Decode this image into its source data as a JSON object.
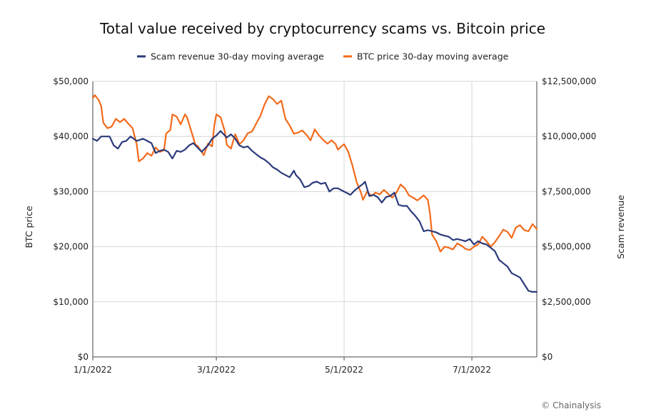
{
  "chart_data": {
    "type": "line",
    "title": "Total value received by cryptocurrency scams vs. Bitcoin price",
    "ylabel_left": "BTC price",
    "ylabel_right": "Scam revenue",
    "credit": "© Chainalysis",
    "legend_position": "top",
    "grid": true,
    "x_ticks": [
      {
        "label": "1/1/2022",
        "day": 0
      },
      {
        "label": "3/1/2022",
        "day": 59
      },
      {
        "label": "5/1/2022",
        "day": 120
      },
      {
        "label": "7/1/2022",
        "day": 181
      }
    ],
    "xlim_days": [
      0,
      212
    ],
    "y_left": {
      "min": 0,
      "max": 50000,
      "ticks": [
        "$0",
        "$10,000",
        "$20,000",
        "$30,000",
        "$40,000",
        "$50,000"
      ]
    },
    "y_right": {
      "min": 0,
      "max": 12500000,
      "ticks": [
        "$0",
        "$2,500,000",
        "$5,000,000",
        "$7,500,000",
        "$10,000,000",
        "$12,500,000"
      ]
    },
    "series": [
      {
        "name": "Scam revenue 30-day moving average",
        "color": "#2b3a7a",
        "axis": "right",
        "points": [
          [
            0,
            9900000
          ],
          [
            2,
            9800000
          ],
          [
            4,
            10000000
          ],
          [
            8,
            10000000
          ],
          [
            10,
            9600000
          ],
          [
            12,
            9450000
          ],
          [
            14,
            9750000
          ],
          [
            16,
            9800000
          ],
          [
            18,
            10000000
          ],
          [
            21,
            9800000
          ],
          [
            24,
            9900000
          ],
          [
            26,
            9800000
          ],
          [
            28,
            9700000
          ],
          [
            30,
            9250000
          ],
          [
            32,
            9350000
          ],
          [
            34,
            9400000
          ],
          [
            36,
            9300000
          ],
          [
            38,
            9000000
          ],
          [
            40,
            9350000
          ],
          [
            42,
            9300000
          ],
          [
            44,
            9400000
          ],
          [
            46,
            9600000
          ],
          [
            48,
            9700000
          ],
          [
            50,
            9500000
          ],
          [
            52,
            9300000
          ],
          [
            54,
            9500000
          ],
          [
            55,
            9600000
          ],
          [
            57,
            9900000
          ],
          [
            59,
            10050000
          ],
          [
            61,
            10250000
          ],
          [
            62,
            10150000
          ],
          [
            64,
            9950000
          ],
          [
            66,
            10100000
          ],
          [
            68,
            9900000
          ],
          [
            70,
            9600000
          ],
          [
            72,
            9500000
          ],
          [
            74,
            9550000
          ],
          [
            76,
            9350000
          ],
          [
            78,
            9200000
          ],
          [
            80,
            9050000
          ],
          [
            82,
            8950000
          ],
          [
            84,
            8800000
          ],
          [
            86,
            8600000
          ],
          [
            88,
            8500000
          ],
          [
            90,
            8350000
          ],
          [
            92,
            8250000
          ],
          [
            94,
            8150000
          ],
          [
            96,
            8450000
          ],
          [
            97,
            8250000
          ],
          [
            99,
            8050000
          ],
          [
            101,
            7700000
          ],
          [
            103,
            7750000
          ],
          [
            105,
            7900000
          ],
          [
            107,
            7950000
          ],
          [
            109,
            7850000
          ],
          [
            111,
            7900000
          ],
          [
            113,
            7500000
          ],
          [
            115,
            7650000
          ],
          [
            117,
            7650000
          ],
          [
            119,
            7550000
          ],
          [
            121,
            7450000
          ],
          [
            123,
            7350000
          ],
          [
            125,
            7550000
          ],
          [
            127,
            7700000
          ],
          [
            129,
            7850000
          ],
          [
            130,
            7950000
          ],
          [
            132,
            7300000
          ],
          [
            134,
            7350000
          ],
          [
            136,
            7250000
          ],
          [
            138,
            7000000
          ],
          [
            140,
            7250000
          ],
          [
            142,
            7300000
          ],
          [
            144,
            7450000
          ],
          [
            146,
            6900000
          ],
          [
            148,
            6850000
          ],
          [
            150,
            6850000
          ],
          [
            152,
            6600000
          ],
          [
            154,
            6400000
          ],
          [
            156,
            6150000
          ],
          [
            158,
            5700000
          ],
          [
            160,
            5750000
          ],
          [
            162,
            5700000
          ],
          [
            164,
            5650000
          ],
          [
            166,
            5550000
          ],
          [
            168,
            5500000
          ],
          [
            170,
            5450000
          ],
          [
            172,
            5300000
          ],
          [
            174,
            5350000
          ],
          [
            176,
            5300000
          ],
          [
            178,
            5250000
          ],
          [
            180,
            5350000
          ],
          [
            182,
            5100000
          ],
          [
            184,
            5250000
          ],
          [
            186,
            5150000
          ],
          [
            188,
            5100000
          ],
          [
            190,
            4950000
          ],
          [
            192,
            4800000
          ],
          [
            194,
            4400000
          ],
          [
            196,
            4250000
          ],
          [
            198,
            4100000
          ],
          [
            200,
            3800000
          ],
          [
            202,
            3700000
          ],
          [
            204,
            3600000
          ],
          [
            206,
            3300000
          ],
          [
            208,
            3000000
          ],
          [
            210,
            2950000
          ],
          [
            212,
            2950000
          ]
        ]
      },
      {
        "name": "BTC price 30-day moving average",
        "color": "#f26a1b",
        "axis": "left",
        "points": [
          [
            0,
            47000
          ],
          [
            1,
            47500
          ],
          [
            3,
            46500
          ],
          [
            4,
            45500
          ],
          [
            5,
            42500
          ],
          [
            7,
            41500
          ],
          [
            9,
            41800
          ],
          [
            11,
            43200
          ],
          [
            13,
            42600
          ],
          [
            15,
            43200
          ],
          [
            17,
            42300
          ],
          [
            19,
            41500
          ],
          [
            20,
            40000
          ],
          [
            21,
            38500
          ],
          [
            22,
            35500
          ],
          [
            24,
            36000
          ],
          [
            26,
            37000
          ],
          [
            28,
            36500
          ],
          [
            30,
            38000
          ],
          [
            32,
            37200
          ],
          [
            34,
            37500
          ],
          [
            35,
            40500
          ],
          [
            37,
            41200
          ],
          [
            38,
            44000
          ],
          [
            40,
            43600
          ],
          [
            42,
            42200
          ],
          [
            44,
            44000
          ],
          [
            45,
            43500
          ],
          [
            47,
            41000
          ],
          [
            49,
            38500
          ],
          [
            50,
            38300
          ],
          [
            52,
            37200
          ],
          [
            53,
            36600
          ],
          [
            55,
            38700
          ],
          [
            57,
            38200
          ],
          [
            58,
            42000
          ],
          [
            59,
            44000
          ],
          [
            61,
            43500
          ],
          [
            63,
            41000
          ],
          [
            64,
            38500
          ],
          [
            66,
            37800
          ],
          [
            68,
            40400
          ],
          [
            70,
            38600
          ],
          [
            72,
            39300
          ],
          [
            74,
            40600
          ],
          [
            76,
            40900
          ],
          [
            78,
            42300
          ],
          [
            80,
            43700
          ],
          [
            82,
            45800
          ],
          [
            84,
            47300
          ],
          [
            86,
            46800
          ],
          [
            88,
            45900
          ],
          [
            89,
            46200
          ],
          [
            90,
            46500
          ],
          [
            92,
            43200
          ],
          [
            94,
            42000
          ],
          [
            96,
            40500
          ],
          [
            98,
            40700
          ],
          [
            100,
            41100
          ],
          [
            102,
            40300
          ],
          [
            104,
            39300
          ],
          [
            106,
            41300
          ],
          [
            108,
            40200
          ],
          [
            110,
            39400
          ],
          [
            112,
            38700
          ],
          [
            114,
            39300
          ],
          [
            116,
            38600
          ],
          [
            117,
            37600
          ],
          [
            119,
            38300
          ],
          [
            120,
            38600
          ],
          [
            122,
            37200
          ],
          [
            124,
            34700
          ],
          [
            126,
            31700
          ],
          [
            128,
            29900
          ],
          [
            129,
            28500
          ],
          [
            131,
            30000
          ],
          [
            133,
            29200
          ],
          [
            135,
            29800
          ],
          [
            137,
            29500
          ],
          [
            139,
            30300
          ],
          [
            141,
            29600
          ],
          [
            143,
            28900
          ],
          [
            145,
            29800
          ],
          [
            147,
            31300
          ],
          [
            149,
            30600
          ],
          [
            151,
            29300
          ],
          [
            153,
            28900
          ],
          [
            155,
            28400
          ],
          [
            157,
            29000
          ],
          [
            158,
            29300
          ],
          [
            160,
            28500
          ],
          [
            161,
            26000
          ],
          [
            162,
            22200
          ],
          [
            164,
            21000
          ],
          [
            166,
            19100
          ],
          [
            168,
            20000
          ],
          [
            170,
            19800
          ],
          [
            172,
            19500
          ],
          [
            174,
            20600
          ],
          [
            176,
            20200
          ],
          [
            178,
            19600
          ],
          [
            180,
            19400
          ],
          [
            182,
            20000
          ],
          [
            184,
            20400
          ],
          [
            186,
            21800
          ],
          [
            188,
            21000
          ],
          [
            190,
            20000
          ],
          [
            192,
            20800
          ],
          [
            194,
            21900
          ],
          [
            196,
            23100
          ],
          [
            198,
            22700
          ],
          [
            200,
            21600
          ],
          [
            202,
            23500
          ],
          [
            204,
            23900
          ],
          [
            206,
            23000
          ],
          [
            208,
            22800
          ],
          [
            210,
            24100
          ],
          [
            212,
            23200
          ]
        ]
      }
    ]
  }
}
